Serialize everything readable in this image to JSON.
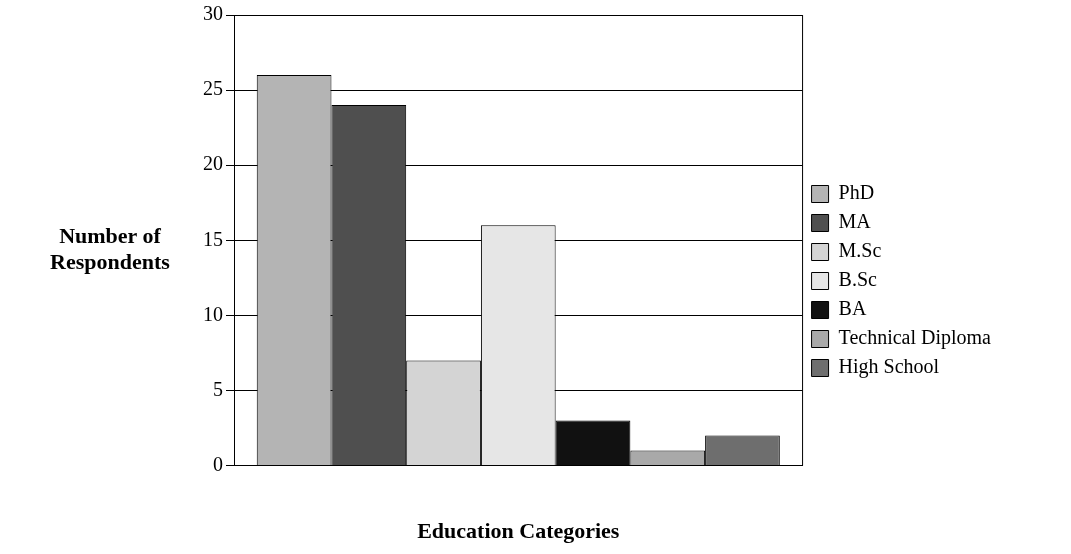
{
  "chart_data": {
    "type": "bar",
    "xlabel": "Education Categories",
    "ylabel": "Number of Respondents",
    "categories": [
      null
    ],
    "series": [
      {
        "name": "PhD",
        "color": "#b4b4b4",
        "values": [
          26
        ]
      },
      {
        "name": "MA",
        "color": "#4f4f4f",
        "values": [
          24
        ]
      },
      {
        "name": "M.Sc",
        "color": "#d4d4d4",
        "values": [
          7
        ]
      },
      {
        "name": "B.Sc",
        "color": "#e6e6e6",
        "values": [
          16
        ]
      },
      {
        "name": "BA",
        "color": "#111111",
        "values": [
          3
        ]
      },
      {
        "name": "Technical Diploma",
        "color": "#a9a9a9",
        "values": [
          1
        ]
      },
      {
        "name": "High School",
        "color": "#6e6e6e",
        "values": [
          2
        ]
      }
    ],
    "ylim": [
      0,
      30
    ],
    "yticks": [
      0,
      5,
      10,
      15,
      20,
      25,
      30
    ],
    "grid": "y",
    "legend": "right"
  }
}
